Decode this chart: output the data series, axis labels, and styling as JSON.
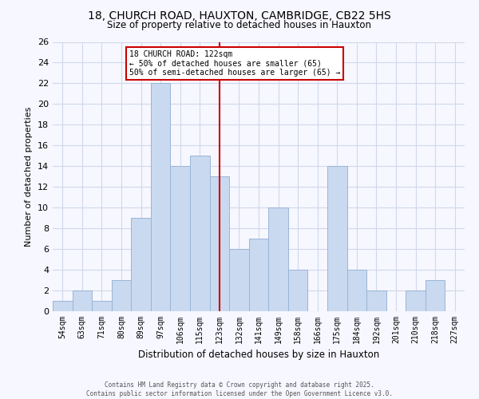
{
  "title": "18, CHURCH ROAD, HAUXTON, CAMBRIDGE, CB22 5HS",
  "subtitle": "Size of property relative to detached houses in Hauxton",
  "xlabel": "Distribution of detached houses by size in Hauxton",
  "ylabel": "Number of detached properties",
  "bin_labels": [
    "54sqm",
    "63sqm",
    "71sqm",
    "80sqm",
    "89sqm",
    "97sqm",
    "106sqm",
    "115sqm",
    "123sqm",
    "132sqm",
    "141sqm",
    "149sqm",
    "158sqm",
    "166sqm",
    "175sqm",
    "184sqm",
    "192sqm",
    "201sqm",
    "210sqm",
    "218sqm",
    "227sqm"
  ],
  "bar_values": [
    1,
    2,
    1,
    3,
    9,
    22,
    14,
    15,
    13,
    6,
    7,
    10,
    4,
    0,
    14,
    4,
    2,
    0,
    2,
    3,
    0
  ],
  "bar_color": "#c9d9f0",
  "bar_edge_color": "#9ab5d5",
  "vline_color": "#cc0000",
  "vline_x_index": 8,
  "annotation_text": "18 CHURCH ROAD: 122sqm\n← 50% of detached houses are smaller (65)\n50% of semi-detached houses are larger (65) →",
  "annotation_box_color": "#ffffff",
  "annotation_box_edge_color": "#cc0000",
  "ylim": [
    0,
    26
  ],
  "yticks": [
    0,
    2,
    4,
    6,
    8,
    10,
    12,
    14,
    16,
    18,
    20,
    22,
    24,
    26
  ],
  "footer_line1": "Contains HM Land Registry data © Crown copyright and database right 2025.",
  "footer_line2": "Contains public sector information licensed under the Open Government Licence v3.0.",
  "bg_color": "#f7f7ff",
  "grid_color": "#d0d8ec"
}
